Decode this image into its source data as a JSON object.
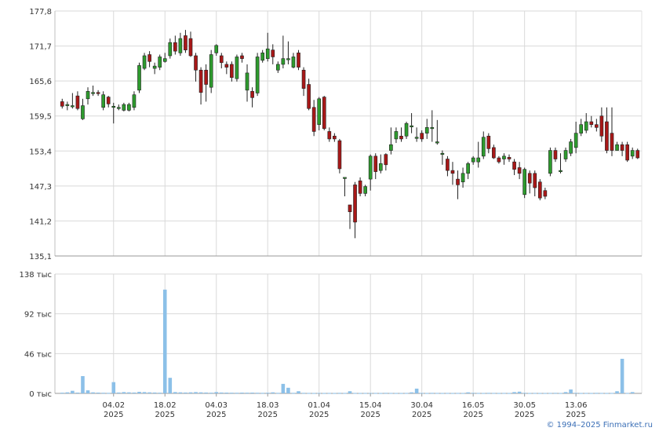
{
  "chart_data": [
    {
      "type": "candlestick",
      "ylim": [
        135.1,
        177.8
      ],
      "yticks": [
        "177,8",
        "171,7",
        "165,6",
        "159,5",
        "153,4",
        "147,3",
        "141,2",
        "135,1"
      ],
      "ytick_values": [
        177.8,
        171.7,
        165.6,
        159.5,
        153.4,
        147.3,
        141.2,
        135.1
      ],
      "xticks": [
        {
          "index": 10,
          "label1": "04.02",
          "label2": "2025"
        },
        {
          "index": 20,
          "label1": "18.02",
          "label2": "2025"
        },
        {
          "index": 30,
          "label1": "04.03",
          "label2": "2025"
        },
        {
          "index": 40,
          "label1": "18.03",
          "label2": "2025"
        },
        {
          "index": 50,
          "label1": "01.04",
          "label2": "2025"
        },
        {
          "index": 60,
          "label1": "15.04",
          "label2": "2025"
        },
        {
          "index": 70,
          "label1": "30.04",
          "label2": "2025"
        },
        {
          "index": 80,
          "label1": "16.05",
          "label2": "2025"
        },
        {
          "index": 90,
          "label1": "30.05",
          "label2": "2025"
        },
        {
          "index": 100,
          "label1": "13.06",
          "label2": "2025"
        }
      ],
      "up_color": "#2e9b2e",
      "down_color": "#a81818",
      "candles": [
        [
          162,
          161.2,
          162.5,
          160.8
        ],
        [
          161.5,
          161.5,
          162,
          160.5
        ],
        [
          161.3,
          161.3,
          163.5,
          160.8
        ],
        [
          163,
          160.8,
          163.8,
          160.5
        ],
        [
          159,
          161.3,
          162.5,
          158.8
        ],
        [
          162.5,
          163.8,
          164.5,
          161.5
        ],
        [
          163.6,
          163.6,
          164.8,
          163
        ],
        [
          163.6,
          163.4,
          164,
          163
        ],
        [
          161,
          163.2,
          163.8,
          160.5
        ],
        [
          162.8,
          161.6,
          163,
          161
        ],
        [
          161.2,
          161.2,
          161.8,
          158.2
        ],
        [
          161,
          161,
          161.5,
          160.5
        ],
        [
          160.5,
          161.5,
          161.8,
          160.3
        ],
        [
          160.5,
          161.5,
          161.8,
          160.3
        ],
        [
          161,
          163.2,
          163.8,
          160.5
        ],
        [
          164,
          168.3,
          168.8,
          163.5
        ],
        [
          167.8,
          170,
          170.5,
          167.5
        ],
        [
          170.2,
          169,
          170.8,
          168
        ],
        [
          167.8,
          168.2,
          168.8,
          166.8
        ],
        [
          168,
          169.8,
          170.2,
          167.5
        ],
        [
          169,
          169.5,
          170.5,
          168.8
        ],
        [
          170,
          172.3,
          173,
          169.5
        ],
        [
          172.3,
          170.8,
          173.5,
          170.2
        ],
        [
          170.5,
          173,
          174,
          170
        ],
        [
          173.5,
          171,
          174.5,
          170.5
        ],
        [
          173,
          170,
          174.2,
          169.8
        ],
        [
          170,
          167.5,
          170.5,
          165.5
        ],
        [
          167.5,
          163.6,
          168,
          161.5
        ],
        [
          167.5,
          165,
          168.5,
          162
        ],
        [
          164.5,
          170.2,
          171,
          163.5
        ],
        [
          170.5,
          171.8,
          172,
          170
        ],
        [
          170,
          168.8,
          170.5,
          167.8
        ],
        [
          168.5,
          168,
          169,
          166.8
        ],
        [
          168.5,
          166.2,
          169,
          165.5
        ],
        [
          166,
          169.8,
          170.2,
          165.5
        ],
        [
          170,
          169.5,
          170.5,
          168.8
        ],
        [
          164,
          167,
          168.5,
          162
        ],
        [
          163.8,
          162.7,
          164.5,
          161
        ],
        [
          163.5,
          169.8,
          170.5,
          163
        ],
        [
          169.2,
          170.5,
          171,
          168.8
        ],
        [
          169.5,
          171.2,
          174,
          169
        ],
        [
          171,
          169.8,
          172,
          168.5
        ],
        [
          167.5,
          168.5,
          169,
          167
        ],
        [
          168.5,
          169.5,
          173.5,
          167.8
        ],
        [
          169.5,
          169.5,
          172.5,
          168.5
        ],
        [
          168,
          169.8,
          170.5,
          167.8
        ],
        [
          170.5,
          168,
          171,
          167.5
        ],
        [
          167.5,
          164.3,
          168,
          163
        ],
        [
          165,
          160.8,
          166,
          160.5
        ],
        [
          161,
          156.8,
          162.3,
          156
        ],
        [
          158,
          162.5,
          162.8,
          157
        ],
        [
          162.8,
          157.3,
          163,
          157
        ],
        [
          156.8,
          155.5,
          157.5,
          155
        ],
        [
          156,
          155.5,
          156.5,
          155
        ],
        [
          155.2,
          150.3,
          155.5,
          149.5
        ],
        [
          148.8,
          148.8,
          148.8,
          145.5
        ],
        [
          144,
          142.8,
          143.5,
          139.8
        ],
        [
          147.5,
          141,
          148,
          138.2
        ],
        [
          148.2,
          146,
          148.8,
          145.5
        ],
        [
          146,
          147.2,
          147.5,
          145.5
        ],
        [
          148.5,
          152.5,
          152.8,
          146.5
        ],
        [
          152.5,
          149.8,
          153,
          148.5
        ],
        [
          150,
          151.2,
          152.8,
          149.5
        ],
        [
          152.8,
          151,
          153,
          150
        ],
        [
          153.5,
          154.5,
          157.5,
          152.8
        ],
        [
          155.5,
          156.8,
          157.5,
          154.8
        ],
        [
          156,
          155.5,
          157.5,
          155
        ],
        [
          156,
          158.2,
          158.5,
          155.5
        ],
        [
          157.8,
          157.8,
          160,
          156.5
        ],
        [
          155.8,
          155.8,
          157.5,
          155
        ],
        [
          156.5,
          155.5,
          157,
          155
        ],
        [
          156.5,
          157.5,
          159,
          155.5
        ],
        [
          157.5,
          157.5,
          160.5,
          155
        ],
        [
          155,
          155,
          158.8,
          154.5
        ],
        [
          153,
          153,
          153.5,
          151
        ],
        [
          152,
          150,
          152.5,
          149
        ],
        [
          150,
          149.5,
          151.5,
          147.5
        ],
        [
          148.5,
          147.5,
          150,
          145
        ],
        [
          148,
          149.5,
          150.5,
          147
        ],
        [
          149.5,
          151.2,
          151.5,
          148.5
        ],
        [
          151.5,
          152.2,
          152.5,
          151
        ],
        [
          151.5,
          152.2,
          155,
          150.5
        ],
        [
          152.5,
          155.8,
          156.8,
          152
        ],
        [
          156,
          153.8,
          156.5,
          153
        ],
        [
          154,
          152.2,
          154.5,
          152
        ],
        [
          152.2,
          151.5,
          152.5,
          151.2
        ],
        [
          152,
          152.5,
          153,
          151
        ],
        [
          152.3,
          152,
          152.8,
          151.5
        ],
        [
          151.5,
          150.2,
          152,
          149.2
        ],
        [
          150.5,
          149.5,
          151.5,
          148.5
        ],
        [
          145.8,
          150.2,
          150.5,
          145.2
        ],
        [
          149.5,
          147.8,
          150,
          146
        ],
        [
          149.5,
          147,
          150,
          145.5
        ],
        [
          148,
          145.2,
          148.5,
          144.8
        ],
        [
          146.5,
          145.5,
          147,
          145
        ],
        [
          149.5,
          153.5,
          154,
          149
        ],
        [
          153.5,
          152,
          154,
          151.5
        ],
        [
          150,
          150,
          153,
          149.5
        ],
        [
          152,
          153.5,
          154,
          151.5
        ],
        [
          153,
          155,
          155.5,
          152.5
        ],
        [
          154,
          156.5,
          158.5,
          153
        ],
        [
          156.5,
          158,
          159,
          156
        ],
        [
          157,
          158.5,
          160,
          156.5
        ],
        [
          158.5,
          158,
          159.5,
          157.5
        ],
        [
          158,
          157.5,
          159,
          156.8
        ],
        [
          159.5,
          156,
          161,
          155
        ],
        [
          158.5,
          153.5,
          161,
          153
        ],
        [
          156.5,
          153.5,
          161,
          152.5
        ],
        [
          153.5,
          154.5,
          155,
          153.5
        ],
        [
          154.5,
          153.5,
          155,
          152.5
        ],
        [
          154.5,
          151.8,
          155,
          151.5
        ],
        [
          152.5,
          153.5,
          154,
          152
        ],
        [
          153.5,
          152.2,
          153.8,
          152
        ]
      ]
    },
    {
      "type": "bar",
      "ylim": [
        0,
        138000
      ],
      "yticks": [
        "138 тыс",
        "92 тыс",
        "46 тыс",
        "0 тыс"
      ],
      "ytick_values": [
        138000,
        92000,
        46000,
        0
      ],
      "color": "#8cc0e8",
      "values": [
        800,
        1200,
        3000,
        900,
        20000,
        3500,
        1200,
        900,
        700,
        600,
        13000,
        1000,
        1500,
        1200,
        1000,
        1800,
        1500,
        1200,
        1000,
        800,
        120000,
        18000,
        1500,
        1200,
        1000,
        1200,
        1500,
        1200,
        1000,
        800,
        1500,
        1000,
        900,
        800,
        700,
        900,
        800,
        900,
        700,
        600,
        700,
        1200,
        600,
        11000,
        6500,
        600,
        2500,
        600,
        500,
        400,
        500,
        400,
        500,
        400,
        600,
        500,
        2500,
        500,
        400,
        500,
        400,
        500,
        400,
        600,
        500,
        400,
        400,
        500,
        1200,
        5500,
        500,
        400,
        600,
        500,
        400,
        500,
        400,
        500,
        400,
        1200,
        600,
        500,
        400,
        600,
        500,
        400,
        500,
        400,
        1500,
        2000,
        600,
        400,
        500,
        400,
        400,
        500,
        600,
        400,
        1500,
        4500,
        600,
        400,
        500,
        400,
        600,
        500,
        400,
        500,
        2500,
        40000,
        500,
        1500
      ]
    }
  ],
  "footer": {
    "copyright": "© 1994–2025 Finmarket.ru"
  }
}
